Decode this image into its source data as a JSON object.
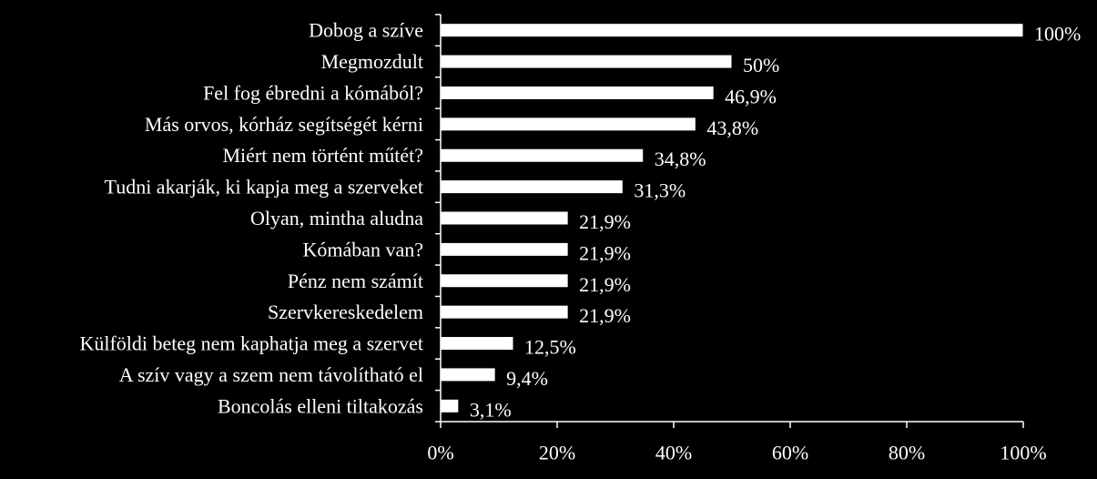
{
  "colors": {
    "background": "#000000",
    "bar": "#ffffff",
    "bar_stroke": "#000000",
    "axis": "#ffffff",
    "text": "#ffffff"
  },
  "chart_data": {
    "type": "bar",
    "orientation": "horizontal",
    "categories": [
      "Dobog a szíve",
      "Megmozdult",
      "Fel fog ébredni a kómából?",
      "Más orvos, kórház segítségét kérni",
      "Miért nem történt műtét?",
      "Tudni akarják, ki kapja meg a szerveket",
      "Olyan, mintha aludna",
      "Kómában van?",
      "Pénz nem számít",
      "Szervkereskedelem",
      "Külföldi beteg nem kaphatja meg a szervet",
      "A szív vagy a szem nem távolítható el",
      "Boncolás elleni tiltakozás"
    ],
    "values": [
      100,
      50,
      46.9,
      43.8,
      34.8,
      31.3,
      21.9,
      21.9,
      21.9,
      21.9,
      12.5,
      9.4,
      3.1
    ],
    "value_labels": [
      "100%",
      "50%",
      "46,9%",
      "43,8%",
      "34,8%",
      "31,3%",
      "21,9%",
      "21,9%",
      "21,9%",
      "21,9%",
      "12,5%",
      "9,4%",
      "3,1%"
    ],
    "xlim": [
      0,
      100
    ],
    "xticks": [
      0,
      20,
      40,
      60,
      80,
      100
    ],
    "xtick_labels": [
      "0%",
      "20%",
      "40%",
      "60%",
      "80%",
      "100%"
    ],
    "title": "",
    "xlabel": "",
    "ylabel": "",
    "grid": false,
    "legend": "none"
  }
}
